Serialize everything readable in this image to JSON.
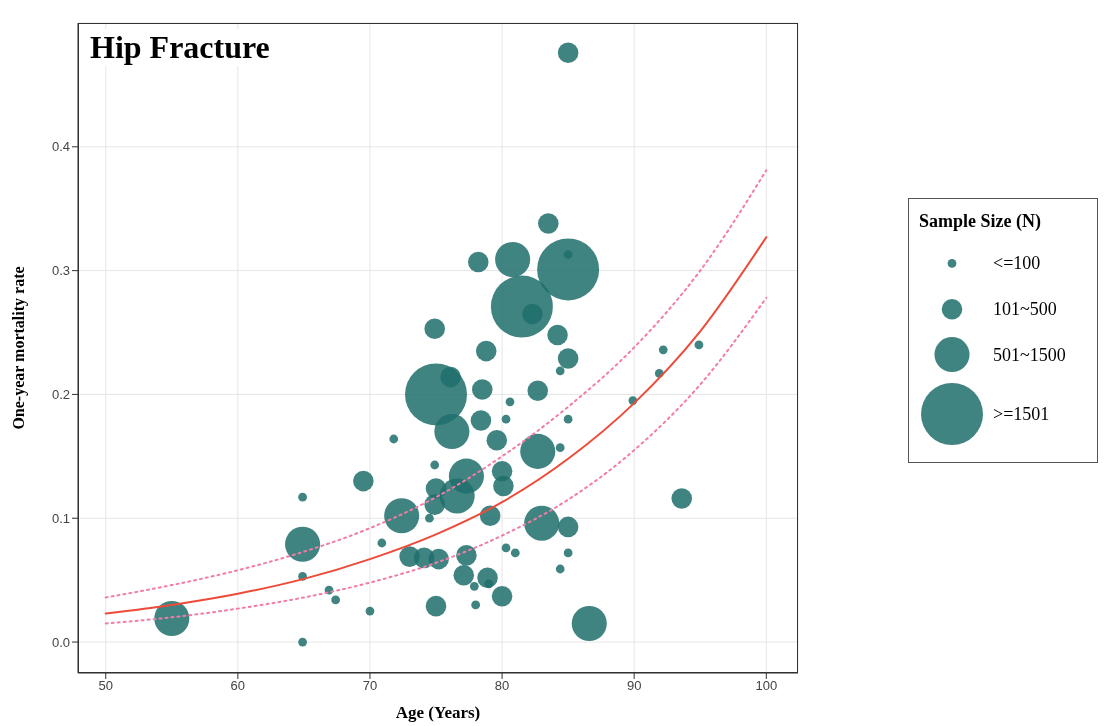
{
  "chart_data": {
    "type": "bubble",
    "title": "Hip Fracture",
    "xlabel": "Age (Years)",
    "ylabel": "One-year mortality rate",
    "legend_title": "Sample Size (N)",
    "grid": true,
    "xlim": [
      47.9,
      102.4
    ],
    "xticks": [
      50,
      60,
      70,
      80,
      90,
      100
    ],
    "ylim": [
      -0.025,
      0.5
    ],
    "yticks": [
      {
        "value": 0,
        "label": "0.0"
      },
      {
        "value": 0.1,
        "label": "0.1"
      },
      {
        "value": 0.2,
        "label": "0.2"
      },
      {
        "value": 0.3,
        "label": "0.3"
      },
      {
        "value": 0.4,
        "label": "0.4"
      }
    ],
    "size_legend": [
      {
        "value": 0.02,
        "label": "<=100"
      },
      {
        "value": 0.11,
        "label": "101~500"
      },
      {
        "value": 0.32,
        "label": "501~1500"
      },
      {
        "value": 1,
        "label": ">=1501"
      }
    ],
    "series": [
      {
        "color": "#1f6e6c",
        "x": [
          85.0,
          83.5,
          78.2,
          80.8,
          81.5,
          85.0,
          85.0,
          82.3,
          74.9,
          84.2,
          78.8,
          85.0,
          84.4,
          92.2,
          91.9,
          94.9,
          89.9,
          75.0,
          76.1,
          78.5,
          82.7,
          80.6,
          76.2,
          78.4,
          80.3,
          85.0,
          71.8,
          79.6,
          82.7,
          84.4,
          74.9,
          69.5,
          77.3,
          80.0,
          80.1,
          75.0,
          76.6,
          74.9,
          72.4,
          74.5,
          79.1,
          83.0,
          85.0,
          93.6,
          64.9,
          64.9,
          70.9,
          73.0,
          74.1,
          75.2,
          77.3,
          80.3,
          81.0,
          85.0,
          77.1,
          78.9,
          77.9,
          79.0,
          84.4,
          64.9,
          66.9,
          67.4,
          80.0,
          75.0,
          78.0,
          70.0,
          55.0,
          64.9,
          86.6
        ],
        "values": [
          0.476,
          0.338,
          0.307,
          0.309,
          0.271,
          0.301,
          0.313,
          0.265,
          0.253,
          0.248,
          0.235,
          0.229,
          0.219,
          0.236,
          0.217,
          0.24,
          0.195,
          0.2,
          0.214,
          0.204,
          0.203,
          0.194,
          0.17,
          0.179,
          0.18,
          0.18,
          0.164,
          0.163,
          0.154,
          0.157,
          0.143,
          0.13,
          0.134,
          0.138,
          0.126,
          0.124,
          0.118,
          0.111,
          0.102,
          0.1,
          0.102,
          0.096,
          0.093,
          0.116,
          0.117,
          0.079,
          0.08,
          0.069,
          0.068,
          0.067,
          0.07,
          0.076,
          0.072,
          0.072,
          0.054,
          0.052,
          0.045,
          0.047,
          0.059,
          0.053,
          0.042,
          0.034,
          0.037,
          0.029,
          0.03,
          0.025,
          0.019,
          0.0,
          0.015
        ],
        "sizes": [
          0.11,
          0.11,
          0.11,
          0.32,
          1,
          1,
          0.02,
          0.11,
          0.11,
          0.11,
          0.11,
          0.11,
          0.02,
          0.02,
          0.02,
          0.02,
          0.02,
          1,
          0.11,
          0.11,
          0.11,
          0.02,
          0.32,
          0.11,
          0.02,
          0.02,
          0.02,
          0.11,
          0.32,
          0.02,
          0.02,
          0.11,
          0.32,
          0.11,
          0.11,
          0.11,
          0.32,
          0.11,
          0.32,
          0.02,
          0.11,
          0.32,
          0.11,
          0.11,
          0.02,
          0.32,
          0.02,
          0.11,
          0.11,
          0.11,
          0.11,
          0.02,
          0.02,
          0.02,
          0.11,
          0.11,
          0.02,
          0.02,
          0.02,
          0.02,
          0.02,
          0.02,
          0.11,
          0.11,
          0.02,
          0.02,
          0.32,
          0.02,
          0.32
        ]
      },
      {
        "type": "line",
        "color": "#ee4a3a",
        "line_style": "solid",
        "x": [
          50,
          55,
          60,
          65,
          70,
          75,
          80,
          85,
          90,
          95,
          100
        ],
        "values": [
          0.023,
          0.03,
          0.039,
          0.051,
          0.067,
          0.087,
          0.113,
          0.148,
          0.193,
          0.251,
          0.327
        ]
      },
      {
        "type": "line",
        "color": "#f27ca6",
        "line_style": "dotted",
        "x": [
          50,
          55,
          60,
          65,
          70,
          75,
          80,
          85,
          90,
          95,
          100
        ],
        "values": [
          0.036,
          0.046,
          0.058,
          0.073,
          0.092,
          0.117,
          0.15,
          0.19,
          0.238,
          0.3,
          0.381
        ]
      },
      {
        "type": "line",
        "color": "#f27ca6",
        "line_style": "dotted",
        "x": [
          50,
          55,
          60,
          65,
          70,
          75,
          80,
          85,
          90,
          95,
          100
        ],
        "values": [
          0.015,
          0.02,
          0.027,
          0.036,
          0.048,
          0.064,
          0.086,
          0.115,
          0.155,
          0.208,
          0.278
        ]
      }
    ]
  }
}
